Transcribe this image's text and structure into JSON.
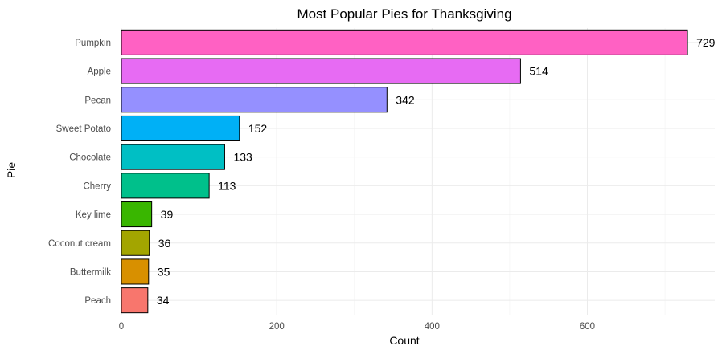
{
  "chart_data": {
    "type": "bar",
    "orientation": "horizontal",
    "title": "Most Popular Pies for Thanksgiving",
    "xlabel": "Count",
    "ylabel": "Pie",
    "categories": [
      "Pumpkin",
      "Apple",
      "Pecan",
      "Sweet Potato",
      "Chocolate",
      "Cherry",
      "Key lime",
      "Coconut cream",
      "Buttermilk",
      "Peach"
    ],
    "values": [
      729,
      514,
      342,
      152,
      133,
      113,
      39,
      36,
      35,
      34
    ],
    "colors": [
      "#FF61C3",
      "#E76BF3",
      "#9590FF",
      "#00B0F6",
      "#00BFC4",
      "#00C08B",
      "#39B600",
      "#A3A500",
      "#D89000",
      "#F8766D"
    ],
    "x_ticks": [
      0,
      200,
      400,
      600
    ],
    "xlim": [
      0,
      765
    ],
    "grid": true,
    "legend": "none",
    "data_labels": true
  }
}
